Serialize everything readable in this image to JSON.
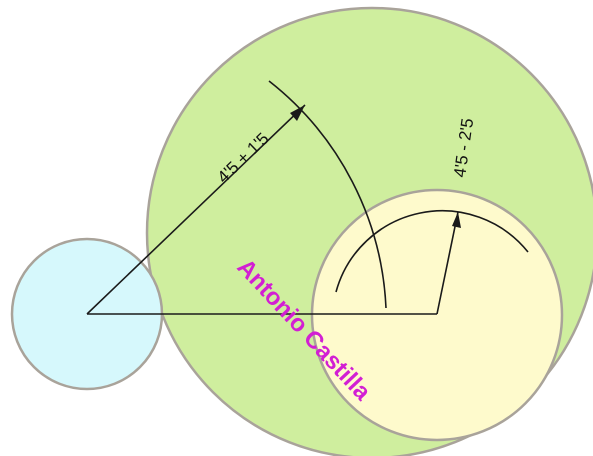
{
  "dimension_labels": {
    "radius_sum": "4'5 + 1'5",
    "radius_difference": "4'5 - 2'5"
  },
  "signature": "Antonio Castilla",
  "colors": {
    "big_circle_fill": "#cfee9e",
    "small_circle_fill": "#d6f8fc",
    "inner_circle_fill": "#fefacc",
    "circle_stroke": "#a9a39a",
    "construction_line": "#1a1a1a",
    "signature": "#d21fd3"
  }
}
